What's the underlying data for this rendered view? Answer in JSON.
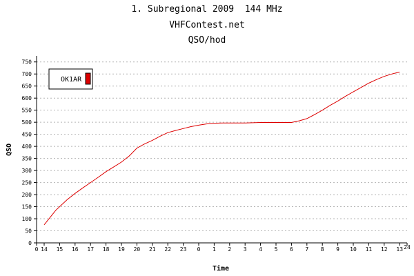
{
  "header": {
    "title": "1. Subregional 2009  144 MHz",
    "site": "VHFContest.net",
    "subtitle": "QSO/hod"
  },
  "colors": {
    "series": "#dd0000",
    "grid": "#b4b4b4",
    "axis": "#000000"
  },
  "chart_data": {
    "type": "line",
    "xlabel": "Time",
    "ylabel": "QSO",
    "x_tick_labels": [
      "0",
      "14",
      "15",
      "16",
      "17",
      "18",
      "19",
      "20",
      "21",
      "22",
      "23",
      "0",
      "1",
      "2",
      "3",
      "4",
      "5",
      "6",
      "7",
      "8",
      "9",
      "10",
      "11",
      "12",
      "13",
      "24"
    ],
    "ylim": [
      0,
      775
    ],
    "y_ticks": [
      0,
      50,
      100,
      150,
      200,
      250,
      300,
      350,
      400,
      450,
      500,
      550,
      600,
      650,
      700,
      750
    ],
    "grid": true,
    "legend_position": "top-left",
    "series": [
      {
        "name": "OK1AR",
        "x": [
          "14:00",
          "14:15",
          "14:30",
          "14:45",
          "15:00",
          "15:30",
          "16:00",
          "16:30",
          "17:00",
          "17:30",
          "18:00",
          "18:30",
          "19:00",
          "19:30",
          "20:00",
          "20:30",
          "21:00",
          "21:30",
          "22:00",
          "22:30",
          "23:00",
          "23:30",
          "00:00",
          "00:30",
          "01:00",
          "01:30",
          "02:00",
          "02:30",
          "03:00",
          "03:30",
          "04:00",
          "04:30",
          "05:00",
          "05:30",
          "06:00",
          "06:30",
          "07:00",
          "07:30",
          "08:00",
          "08:30",
          "09:00",
          "09:30",
          "10:00",
          "10:30",
          "11:00",
          "11:30",
          "12:00",
          "12:30",
          "13:00"
        ],
        "values": [
          75,
          95,
          115,
          135,
          150,
          180,
          205,
          228,
          250,
          272,
          295,
          315,
          335,
          360,
          393,
          410,
          425,
          442,
          457,
          466,
          474,
          482,
          488,
          493,
          496,
          497,
          497,
          497,
          497,
          498,
          499,
          499,
          499,
          499,
          499,
          506,
          515,
          532,
          550,
          570,
          588,
          608,
          626,
          644,
          662,
          677,
          690,
          700,
          708
        ]
      }
    ]
  }
}
